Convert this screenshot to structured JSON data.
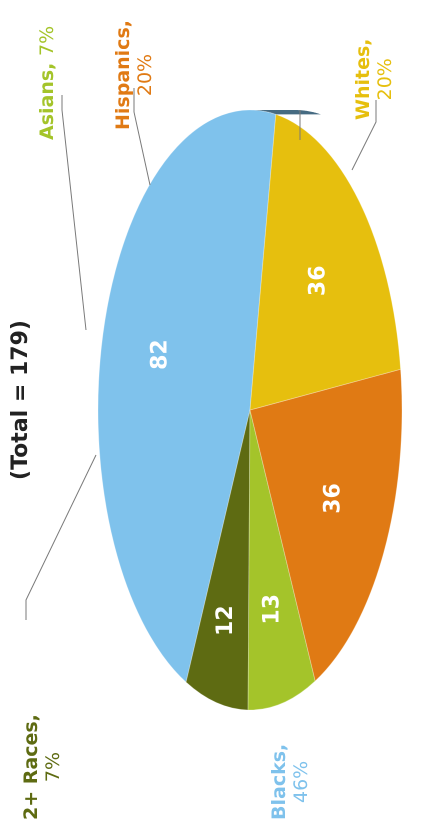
{
  "chart_data": {
    "type": "pie",
    "subtitle": "(Total = 179)",
    "slices": [
      {
        "name": "Blacks",
        "value": 82,
        "percent_label": "46%",
        "color": "#7fc2ec"
      },
      {
        "name": "2+ Races",
        "value": 12,
        "percent_label": "7%",
        "color": "#5e6b12"
      },
      {
        "name": "Asians",
        "value": 13,
        "percent_label": "7%",
        "color": "#a4c42a"
      },
      {
        "name": "Hispanics",
        "value": 36,
        "percent_label": "20%",
        "color": "#e07a14"
      },
      {
        "name": "Whites",
        "value": 36,
        "percent_label": "20%",
        "color": "#e6bf0e"
      }
    ]
  }
}
